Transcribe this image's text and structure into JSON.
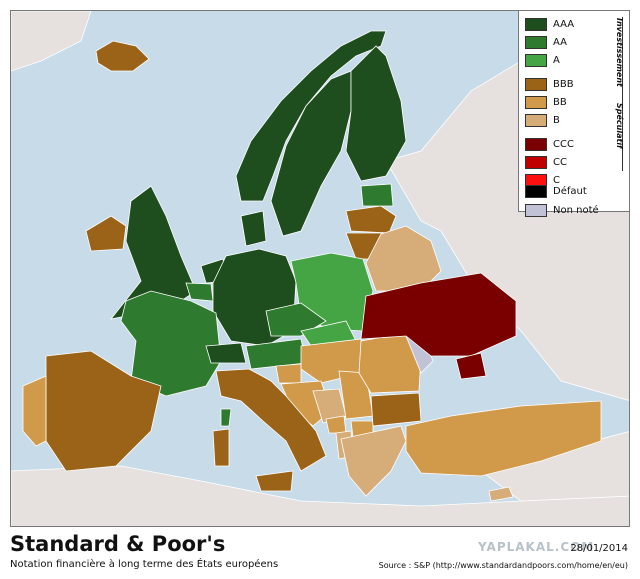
{
  "legend": {
    "groups": {
      "investment": "Investissement",
      "speculative": "Spéculatif"
    },
    "items": [
      {
        "label": "AAA",
        "color": "#1e4d1e"
      },
      {
        "label": "AA",
        "color": "#2e7a2e"
      },
      {
        "label": "A",
        "color": "#45a545"
      },
      {
        "label": "BBB",
        "color": "#9b6318"
      },
      {
        "label": "BB",
        "color": "#d19a4a"
      },
      {
        "label": "B",
        "color": "#d6ac78"
      },
      {
        "label": "CCC",
        "color": "#7a0000"
      },
      {
        "label": "CC",
        "color": "#c00000"
      },
      {
        "label": "C",
        "color": "#ff1010"
      },
      {
        "label": "Défaut",
        "color": "#000000"
      },
      {
        "label": "Non noté",
        "color": "#c2c2d6"
      }
    ]
  },
  "map": {
    "sea_color": "#c7dbe8",
    "land_color": "#e6e1df"
  },
  "footer": {
    "title": "Standard & Poor's",
    "subtitle": "Notation financière à long terme des États européens",
    "date": "28/01/2014",
    "source": "Source : S&P (http://www.standardandpoors.com/home/en/eu)",
    "watermark": "YAPLAKAL.COM"
  }
}
